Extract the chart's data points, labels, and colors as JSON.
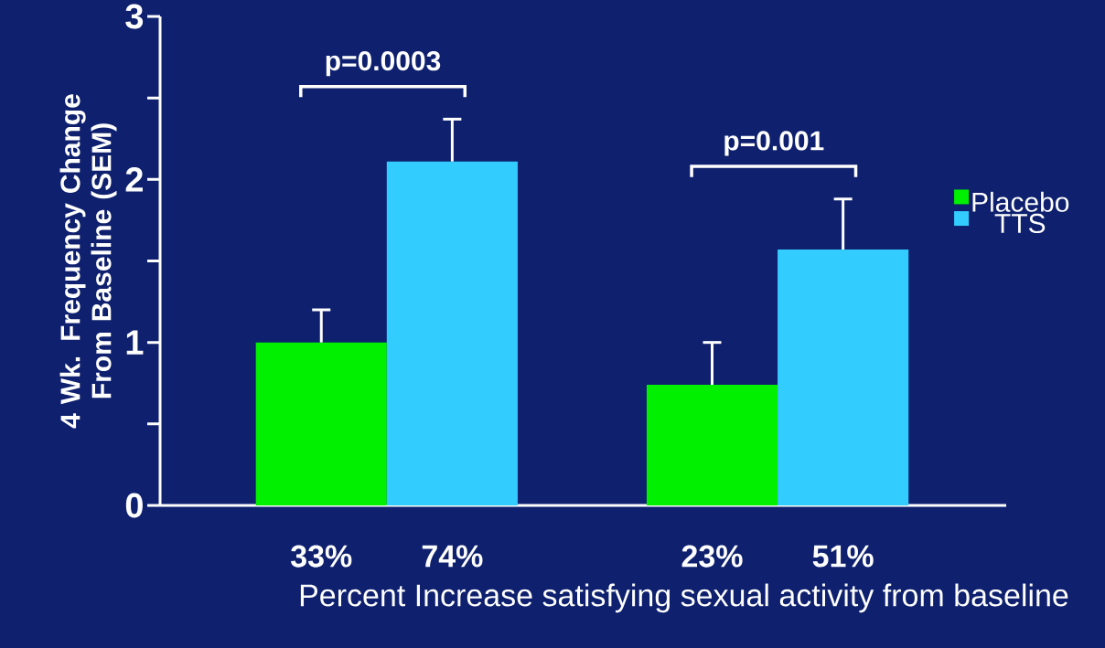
{
  "chart_data": {
    "type": "bar",
    "ylabel": "4 Wk. Frequency Change From Baseline (SEM)",
    "xlabel": "Percent Increase satisfying sexual activity from baseline",
    "categories": [
      null,
      null
    ],
    "series": [
      {
        "name": "Placebo",
        "color": "#00f000",
        "values": [
          1.0,
          0.74
        ],
        "errors": [
          0.2,
          0.26
        ]
      },
      {
        "name": "TTS",
        "color": "#33ccff",
        "values": [
          2.11,
          1.57
        ],
        "errors": [
          0.26,
          0.31
        ]
      }
    ],
    "ylim": [
      0,
      3
    ],
    "yticks": [
      0,
      1,
      2,
      3
    ],
    "legend": "right",
    "annotations": [
      "p=0.0003",
      "p=0.001",
      "33%",
      "74%",
      "23%",
      "51%"
    ]
  }
}
